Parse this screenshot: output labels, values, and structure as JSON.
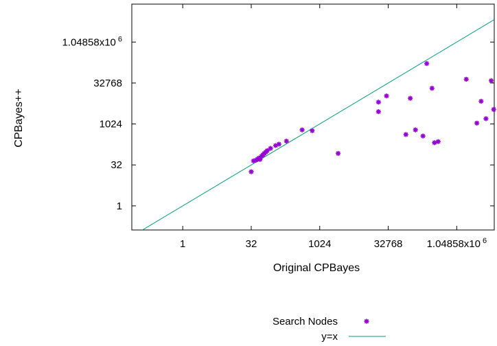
{
  "chart_data": {
    "type": "scatter",
    "title": "",
    "xlabel": "Original CPBayes",
    "ylabel": "CPBayes++",
    "x_scale": "log2",
    "y_scale": "log2",
    "xlim": [
      0.076,
      7000000
    ],
    "ylim": [
      0.13,
      26000000
    ],
    "x_ticks": [
      {
        "value": 1,
        "label": "1"
      },
      {
        "value": 32,
        "label": "32"
      },
      {
        "value": 1024,
        "label": "1024"
      },
      {
        "value": 32768,
        "label": "32768"
      },
      {
        "value": 1048576,
        "label": "1.04858x10",
        "exp": "6"
      }
    ],
    "y_ticks": [
      {
        "value": 1,
        "label": "1"
      },
      {
        "value": 32,
        "label": "32"
      },
      {
        "value": 1024,
        "label": "1024"
      },
      {
        "value": 32768,
        "label": "32768"
      },
      {
        "value": 1048576,
        "label": "1.04858x10",
        "exp": "6"
      }
    ],
    "grid": false,
    "legend_position": "bottom-center",
    "series": [
      {
        "name": "Search Nodes",
        "color": "#9400d3",
        "marker": "star",
        "points": [
          [
            32,
            18
          ],
          [
            36,
            45
          ],
          [
            41,
            48
          ],
          [
            44,
            52
          ],
          [
            47,
            57
          ],
          [
            50,
            51
          ],
          [
            54,
            67
          ],
          [
            58,
            75
          ],
          [
            62,
            85
          ],
          [
            67,
            95
          ],
          [
            72,
            107
          ],
          [
            85,
            130
          ],
          [
            110,
            165
          ],
          [
            130,
            185
          ],
          [
            190,
            240
          ],
          [
            420,
            620
          ],
          [
            700,
            580
          ],
          [
            2600,
            85
          ],
          [
            20000,
            2900
          ],
          [
            20000,
            6500
          ],
          [
            30000,
            11000
          ],
          [
            80000,
            420
          ],
          [
            100000,
            9000
          ],
          [
            130000,
            620
          ],
          [
            190000,
            370
          ],
          [
            230000,
            170000
          ],
          [
            300000,
            21000
          ],
          [
            340000,
            210
          ],
          [
            410000,
            230
          ],
          [
            1700000,
            45000
          ],
          [
            2900000,
            1100
          ],
          [
            3600000,
            7000
          ],
          [
            4600000,
            1600
          ],
          [
            6000000,
            40000
          ],
          [
            6800000,
            3500
          ]
        ]
      },
      {
        "name": "y=x",
        "color": "#009e73",
        "type": "line",
        "points": [
          [
            0.076,
            0.076
          ],
          [
            7000000,
            7000000
          ]
        ]
      }
    ]
  }
}
